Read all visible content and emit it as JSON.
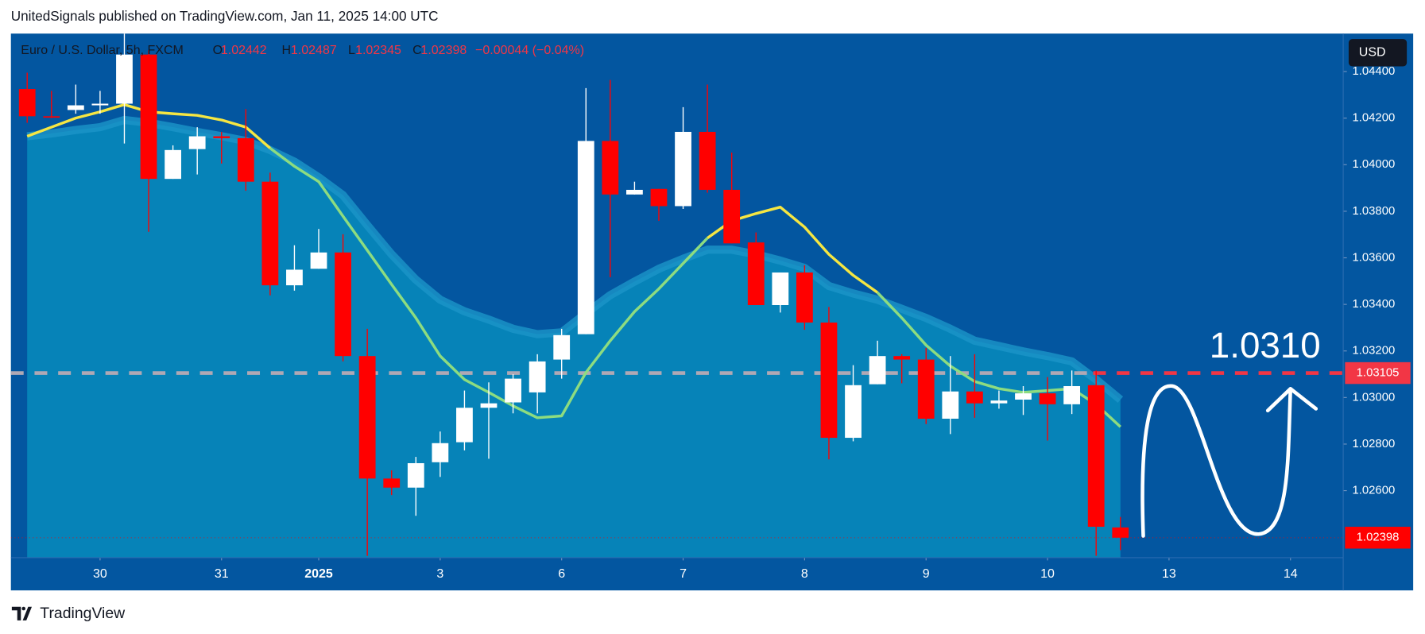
{
  "chart_data": {
    "type": "candlestick",
    "header": "UnitedSignals published on TradingView.com, Jan 11, 2025 14:00 UTC",
    "symbol": "Euro / U.S. Dollar, 5h, FXCM",
    "legend_labels": {
      "o": "O",
      "h": "H",
      "l": "L",
      "c": "C"
    },
    "change": "−0.00044 (−0.04%)",
    "currency": "USD",
    "brand": "TradingView",
    "annotation": "1.0310",
    "up_color": "#ffffff",
    "down_color": "#ff0000",
    "open": [
      1.04325,
      1.04208,
      1.04235,
      1.04255,
      1.04262,
      1.04473,
      1.03939,
      1.04067,
      1.04122,
      1.04114,
      1.03927,
      1.03482,
      1.03553,
      1.03623,
      1.03178,
      1.02652,
      1.02613,
      1.02722,
      1.02808,
      1.02956,
      1.02979,
      1.03022,
      1.03163,
      1.03272,
      1.04102,
      1.03872,
      1.03896,
      1.03822,
      1.04141,
      1.03892,
      1.03666,
      1.03397,
      1.03537,
      1.03322,
      1.02827,
      1.03057,
      1.03178,
      1.03163,
      1.02909,
      1.03026,
      1.02975,
      1.02991,
      1.03018,
      1.02971,
      1.03053,
      1.02442
    ],
    "high": [
      1.04395,
      1.04317,
      1.04344,
      1.04317,
      1.0457,
      1.04492,
      1.04083,
      1.04161,
      1.04141,
      1.04239,
      1.03966,
      1.03654,
      1.03724,
      1.03701,
      1.03295,
      1.02687,
      1.02745,
      1.02854,
      1.0303,
      1.03065,
      1.031,
      1.03186,
      1.03295,
      1.04329,
      1.04364,
      1.03927,
      1.03896,
      1.04247,
      1.04344,
      1.04052,
      1.03709,
      1.03537,
      1.03568,
      1.03389,
      1.03139,
      1.03244,
      1.03186,
      1.03213,
      1.03178,
      1.03186,
      1.0303,
      1.03049,
      1.03088,
      1.03116,
      1.03116,
      1.02487
    ],
    "low": [
      1.0418,
      1.042,
      1.04219,
      1.04219,
      1.04091,
      1.03712,
      1.03939,
      1.03958,
      1.04005,
      1.03888,
      1.03439,
      1.03459,
      1.03553,
      1.03155,
      1.0232,
      1.02581,
      1.02492,
      1.02659,
      1.02773,
      1.02737,
      1.02932,
      1.02932,
      1.03081,
      1.03272,
      1.03517,
      1.03872,
      1.03759,
      1.0381,
      1.0388,
      1.03662,
      1.03397,
      1.03365,
      1.03291,
      1.02734,
      1.02812,
      1.03057,
      1.03061,
      1.02886,
      1.02843,
      1.02913,
      1.02952,
      1.02925,
      1.02815,
      1.02929,
      1.0232,
      1.02345
    ],
    "close": [
      1.04208,
      1.04204,
      1.04255,
      1.04262,
      1.04473,
      1.03939,
      1.04063,
      1.04122,
      1.04114,
      1.03927,
      1.03482,
      1.03549,
      1.03623,
      1.03178,
      1.02652,
      1.02613,
      1.02718,
      1.02804,
      1.02956,
      1.02975,
      1.03081,
      1.03155,
      1.03268,
      1.04102,
      1.03872,
      1.03892,
      1.03822,
      1.04141,
      1.03892,
      1.03662,
      1.03397,
      1.03537,
      1.03322,
      1.02827,
      1.03053,
      1.03178,
      1.03163,
      1.02909,
      1.03026,
      1.02975,
      1.02987,
      1.03018,
      1.02971,
      1.03049,
      1.02445,
      1.02398
    ],
    "lines": [
      {
        "color": "#f5e642",
        "values": [
          1.04122,
          1.04161,
          1.042,
          1.04227,
          1.04258,
          1.04227,
          1.04219,
          1.04212,
          1.04192,
          1.04161,
          1.04071,
          null,
          null,
          null,
          null,
          null,
          null,
          null,
          null,
          null,
          null,
          null,
          null,
          null,
          null,
          null,
          null,
          null,
          1.03685,
          1.03759,
          1.0379,
          1.03818,
          1.03732,
          1.03615,
          1.03525,
          1.03451,
          null,
          null,
          null,
          null,
          null,
          null,
          null,
          null,
          null,
          null
        ]
      },
      {
        "color": "#8ddc80",
        "values": [
          null,
          null,
          null,
          null,
          null,
          null,
          null,
          null,
          null,
          null,
          1.04071,
          1.03993,
          1.03927,
          1.03779,
          1.03632,
          1.03486,
          1.03342,
          1.03178,
          1.03077,
          1.03022,
          1.02964,
          1.02913,
          1.02921,
          1.03108,
          1.03244,
          1.03369,
          1.03467,
          1.03576,
          1.03685,
          null,
          null,
          null,
          null,
          null,
          null,
          1.03451,
          1.03342,
          1.03225,
          1.03135,
          1.03069,
          1.03038,
          1.03022,
          1.0303,
          1.03038,
          1.02971,
          1.02874
        ]
      }
    ],
    "cloud": {
      "color": "#0683b8",
      "edge_color": "#1b95c8",
      "values": [
        1.04122,
        1.04134,
        1.04149,
        1.04161,
        1.04192,
        1.0418,
        1.04161,
        1.04141,
        1.04122,
        1.04102,
        1.04063,
        1.04013,
        1.03946,
        1.03869,
        1.0374,
        1.03615,
        1.03506,
        1.0342,
        1.0337,
        1.03335,
        1.03295,
        1.03272,
        1.0328,
        1.03362,
        1.0344,
        1.03498,
        1.03553,
        1.03596,
        1.03635,
        1.03635,
        1.03615,
        1.03588,
        1.03557,
        1.03479,
        1.03447,
        1.0342,
        1.03381,
        1.03342,
        1.03295,
        1.03244,
        1.03221,
        1.03198,
        1.03178,
        1.03155,
        1.03077,
        1.02991
      ]
    },
    "level": {
      "value": 1.03105,
      "color": "#f23645",
      "left_color": "#b0a8b4"
    },
    "background": "#0356a0",
    "ylim": [
      1.02312,
      1.04563
    ],
    "yticks": [
      {
        "value": 1.026,
        "label": "1.02600"
      },
      {
        "value": 1.028,
        "label": "1.02800"
      },
      {
        "value": 1.03,
        "label": "1.03000"
      },
      {
        "value": 1.032,
        "label": "1.03200"
      },
      {
        "value": 1.034,
        "label": "1.03400"
      },
      {
        "value": 1.036,
        "label": "1.03600"
      },
      {
        "value": 1.038,
        "label": "1.03800"
      },
      {
        "value": 1.04,
        "label": "1.04000"
      },
      {
        "value": 1.042,
        "label": "1.04200"
      },
      {
        "value": 1.044,
        "label": "1.04400"
      }
    ],
    "xlim": [
      -0.67,
      54.17
    ],
    "xticks": [
      {
        "value": 3,
        "label": "30"
      },
      {
        "value": 8,
        "label": "31"
      },
      {
        "value": 12,
        "label": "2025"
      },
      {
        "value": 17,
        "label": "3"
      },
      {
        "value": 22,
        "label": "6"
      },
      {
        "value": 27,
        "label": "7"
      },
      {
        "value": 32,
        "label": "8"
      },
      {
        "value": 37,
        "label": "9"
      },
      {
        "value": 42,
        "label": "10"
      },
      {
        "value": 47,
        "label": "13"
      },
      {
        "value": 52,
        "label": "14"
      }
    ]
  }
}
